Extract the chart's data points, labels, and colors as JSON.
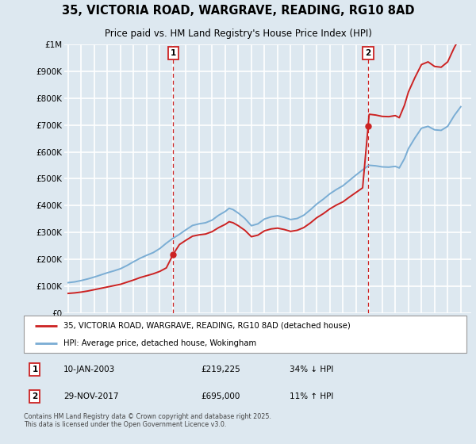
{
  "title": "35, VICTORIA ROAD, WARGRAVE, READING, RG10 8AD",
  "subtitle": "Price paid vs. HM Land Registry's House Price Index (HPI)",
  "ylim": [
    0,
    1000000
  ],
  "yticks": [
    0,
    100000,
    200000,
    300000,
    400000,
    500000,
    600000,
    700000,
    800000,
    900000,
    1000000
  ],
  "ytick_labels": [
    "£0",
    "£100K",
    "£200K",
    "£300K",
    "£400K",
    "£500K",
    "£600K",
    "£700K",
    "£800K",
    "£900K",
    "£1M"
  ],
  "background_color": "#dde8f0",
  "plot_bg_color": "#dde8f0",
  "grid_color": "#ffffff",
  "hpi_color": "#7aadd4",
  "price_color": "#cc2222",
  "vline_color": "#cc2222",
  "xlim_left": 1994.7,
  "xlim_right": 2025.8,
  "marker1_year": 2003.03,
  "marker2_year": 2017.92,
  "marker1_price": 219225,
  "marker2_price": 695000,
  "legend_label_price": "35, VICTORIA ROAD, WARGRAVE, READING, RG10 8AD (detached house)",
  "legend_label_hpi": "HPI: Average price, detached house, Wokingham",
  "annotation1_date": "10-JAN-2003",
  "annotation1_price_str": "£219,225",
  "annotation1_hpi": "34% ↓ HPI",
  "annotation2_date": "29-NOV-2017",
  "annotation2_price_str": "£695,000",
  "annotation2_hpi": "11% ↑ HPI",
  "footnote": "Contains HM Land Registry data © Crown copyright and database right 2025.\nThis data is licensed under the Open Government Licence v3.0.",
  "hpi_years": [
    1995.0,
    1995.5,
    1996.0,
    1996.5,
    1997.0,
    1997.5,
    1998.0,
    1998.5,
    1999.0,
    1999.5,
    2000.0,
    2000.5,
    2001.0,
    2001.5,
    2002.0,
    2002.5,
    2003.0,
    2003.5,
    2004.0,
    2004.5,
    2005.0,
    2005.5,
    2006.0,
    2006.5,
    2007.0,
    2007.3,
    2007.6,
    2008.0,
    2008.5,
    2009.0,
    2009.5,
    2010.0,
    2010.5,
    2011.0,
    2011.5,
    2012.0,
    2012.5,
    2013.0,
    2013.5,
    2014.0,
    2014.5,
    2015.0,
    2015.5,
    2016.0,
    2016.5,
    2017.0,
    2017.5,
    2017.92,
    2018.0,
    2018.5,
    2019.0,
    2019.5,
    2020.0,
    2020.3,
    2020.7,
    2021.0,
    2021.5,
    2022.0,
    2022.5,
    2023.0,
    2023.5,
    2024.0,
    2024.5,
    2025.0
  ],
  "hpi_values": [
    113000,
    116000,
    121000,
    127000,
    134000,
    142000,
    150000,
    157000,
    165000,
    177000,
    191000,
    204000,
    215000,
    225000,
    240000,
    260000,
    278000,
    293000,
    310000,
    326000,
    332000,
    336000,
    346000,
    364000,
    378000,
    390000,
    385000,
    372000,
    352000,
    325000,
    332000,
    350000,
    358000,
    362000,
    356000,
    348000,
    352000,
    364000,
    384000,
    406000,
    424000,
    444000,
    460000,
    474000,
    494000,
    514000,
    533000,
    548000,
    550000,
    548000,
    544000,
    543000,
    546000,
    540000,
    575000,
    612000,
    652000,
    688000,
    695000,
    682000,
    680000,
    695000,
    735000,
    768000
  ],
  "price_years": [
    1995.0,
    1995.5,
    1996.0,
    1996.5,
    1997.0,
    1997.5,
    1998.0,
    1998.5,
    1999.0,
    1999.5,
    2000.0,
    2000.5,
    2001.0,
    2001.5,
    2002.0,
    2002.5,
    2003.03,
    2003.5,
    2004.0,
    2004.5,
    2005.0,
    2005.5,
    2006.0,
    2006.5,
    2007.0,
    2007.3,
    2007.6,
    2008.0,
    2008.5,
    2009.0,
    2009.5,
    2010.0,
    2010.5,
    2011.0,
    2011.5,
    2012.0,
    2012.5,
    2013.0,
    2013.5,
    2014.0,
    2014.5,
    2015.0,
    2015.5,
    2016.0,
    2016.5,
    2017.0,
    2017.5,
    2017.92,
    2018.0,
    2018.5,
    2019.0,
    2019.5,
    2020.0,
    2020.3,
    2020.7,
    2021.0,
    2021.5,
    2022.0,
    2022.5,
    2023.0,
    2023.5,
    2024.0,
    2024.5,
    2025.0
  ],
  "price_values": [
    73000,
    75000,
    78000,
    82000,
    87000,
    92000,
    97000,
    102000,
    107000,
    115000,
    123000,
    132000,
    139000,
    146000,
    155000,
    168000,
    219225,
    255000,
    271000,
    286000,
    291000,
    294000,
    303000,
    318000,
    330000,
    340000,
    336000,
    325000,
    308000,
    284000,
    290000,
    306000,
    313000,
    316000,
    311000,
    304000,
    308000,
    318000,
    335000,
    355000,
    370000,
    388000,
    402000,
    414000,
    432000,
    449000,
    466000,
    695000,
    740000,
    737000,
    732000,
    731000,
    735000,
    727000,
    774000,
    823000,
    877000,
    925000,
    935000,
    918000,
    915000,
    935000,
    988000,
    1032000
  ]
}
